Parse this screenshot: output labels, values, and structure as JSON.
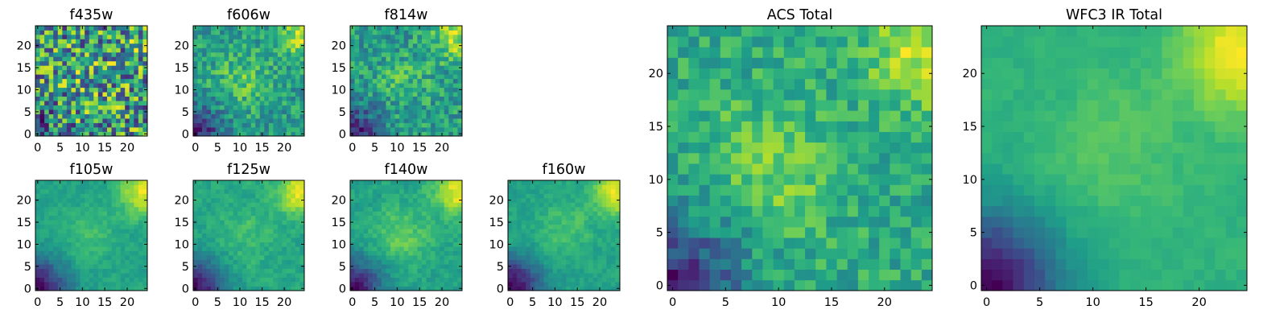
{
  "chart_data": [
    {
      "type": "heatmap",
      "title": "f435w",
      "colormap": "viridis",
      "grid": false,
      "xlim": [
        0,
        25
      ],
      "ylim": [
        0,
        25
      ],
      "xticks": [
        "0",
        "5",
        "10",
        "15",
        "20"
      ],
      "yticks": [
        "0",
        "5",
        "10",
        "15",
        "20"
      ],
      "pattern": "noisy",
      "noise": 0.3,
      "profile": {
        "base": 0.55,
        "center": 0.05,
        "cx": 12,
        "cy": 12,
        "corner": 0.05,
        "ll": 0.15
      }
    },
    {
      "type": "heatmap",
      "title": "f606w",
      "colormap": "viridis",
      "grid": false,
      "xlim": [
        0,
        25
      ],
      "ylim": [
        0,
        25
      ],
      "xticks": [
        "0",
        "5",
        "10",
        "15",
        "20"
      ],
      "yticks": [
        "0",
        "5",
        "10",
        "15",
        "20"
      ],
      "pattern": "noisy",
      "noise": 0.2,
      "profile": {
        "base": 0.55,
        "center": 0.2,
        "cx": 10,
        "cy": 12,
        "corner": 0.35,
        "ll": 0.45
      }
    },
    {
      "type": "heatmap",
      "title": "f814w",
      "colormap": "viridis",
      "grid": false,
      "xlim": [
        0,
        25
      ],
      "ylim": [
        0,
        25
      ],
      "xticks": [
        "0",
        "5",
        "10",
        "15",
        "20"
      ],
      "yticks": [
        "0",
        "5",
        "10",
        "15",
        "20"
      ],
      "pattern": "noisy",
      "noise": 0.22,
      "profile": {
        "base": 0.52,
        "center": 0.15,
        "cx": 11,
        "cy": 12,
        "corner": 0.4,
        "ll": 0.5
      }
    },
    {
      "type": "heatmap",
      "title": "f105w",
      "colormap": "viridis",
      "grid": false,
      "xlim": [
        0,
        25
      ],
      "ylim": [
        0,
        25
      ],
      "xticks": [
        "0",
        "5",
        "10",
        "15",
        "20"
      ],
      "yticks": [
        "0",
        "5",
        "10",
        "15",
        "20"
      ],
      "pattern": "smooth",
      "noise": 0.1,
      "profile": {
        "base": 0.55,
        "center": 0.12,
        "cx": 12,
        "cy": 12,
        "corner": 0.4,
        "ll": 0.55
      }
    },
    {
      "type": "heatmap",
      "title": "f125w",
      "colormap": "viridis",
      "grid": false,
      "xlim": [
        0,
        25
      ],
      "ylim": [
        0,
        25
      ],
      "xticks": [
        "0",
        "5",
        "10",
        "15",
        "20"
      ],
      "yticks": [
        "0",
        "5",
        "10",
        "15",
        "20"
      ],
      "pattern": "smooth",
      "noise": 0.12,
      "profile": {
        "base": 0.55,
        "center": 0.12,
        "cx": 11,
        "cy": 12,
        "corner": 0.4,
        "ll": 0.55
      }
    },
    {
      "type": "heatmap",
      "title": "f140w",
      "colormap": "viridis",
      "grid": false,
      "xlim": [
        0,
        25
      ],
      "ylim": [
        0,
        25
      ],
      "xticks": [
        "0",
        "5",
        "10",
        "15",
        "20"
      ],
      "yticks": [
        "0",
        "5",
        "10",
        "15",
        "20"
      ],
      "pattern": "smooth",
      "noise": 0.12,
      "profile": {
        "base": 0.55,
        "center": 0.18,
        "cx": 11,
        "cy": 12,
        "corner": 0.4,
        "ll": 0.55
      }
    },
    {
      "type": "heatmap",
      "title": "f160w",
      "colormap": "viridis",
      "grid": false,
      "xlim": [
        0,
        25
      ],
      "ylim": [
        0,
        25
      ],
      "xticks": [
        "0",
        "5",
        "10",
        "15",
        "20"
      ],
      "yticks": [
        "0",
        "5",
        "10",
        "15",
        "20"
      ],
      "pattern": "smooth",
      "noise": 0.1,
      "profile": {
        "base": 0.55,
        "center": 0.12,
        "cx": 12,
        "cy": 13,
        "corner": 0.4,
        "ll": 0.6
      }
    },
    {
      "type": "heatmap",
      "title": "ACS Total",
      "colormap": "viridis",
      "grid": false,
      "xlim": [
        0,
        25
      ],
      "ylim": [
        0,
        25
      ],
      "xticks": [
        "0",
        "5",
        "10",
        "15",
        "20"
      ],
      "yticks": [
        "0",
        "5",
        "10",
        "15",
        "20"
      ],
      "pattern": "noisy",
      "noise": 0.16,
      "profile": {
        "base": 0.55,
        "center": 0.22,
        "cx": 9,
        "cy": 11,
        "corner": 0.35,
        "ll": 0.55
      }
    },
    {
      "type": "heatmap",
      "title": "WFC3 IR Total",
      "colormap": "viridis",
      "grid": false,
      "xlim": [
        0,
        25
      ],
      "ylim": [
        0,
        25
      ],
      "xticks": [
        "0",
        "5",
        "10",
        "15",
        "20"
      ],
      "yticks": [
        "0",
        "5",
        "10",
        "15",
        "20"
      ],
      "pattern": "smooth",
      "noise": 0.06,
      "profile": {
        "base": 0.58,
        "center": 0.1,
        "cx": 12,
        "cy": 13,
        "corner": 0.38,
        "ll": 0.65
      }
    }
  ]
}
